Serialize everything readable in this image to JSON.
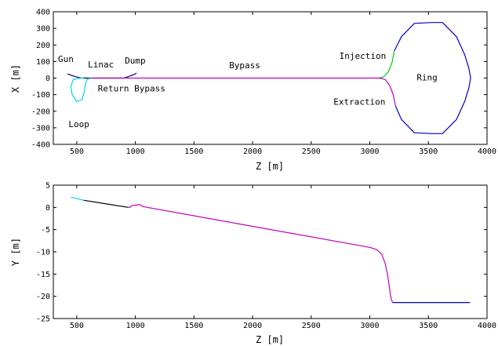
{
  "chart_data": [
    {
      "type": "line",
      "xlabel": "Z  [m]",
      "ylabel": "X  [m]",
      "xlim": [
        300,
        4000
      ],
      "ylim": [
        -400,
        400
      ],
      "xticks": [
        500,
        1000,
        1500,
        2000,
        2500,
        3000,
        3500,
        4000
      ],
      "yticks": [
        400,
        300,
        200,
        100,
        0,
        -100,
        -200,
        -300,
        -400
      ],
      "grid": false,
      "annotations": [
        {
          "text": "Gun",
          "x": 340,
          "y": 98
        },
        {
          "text": "Linac",
          "x": 595,
          "y": 65
        },
        {
          "text": "Dump",
          "x": 910,
          "y": 88
        },
        {
          "text": "Return Bypass",
          "x": 680,
          "y": -80
        },
        {
          "text": "Bypass",
          "x": 1800,
          "y": 60
        },
        {
          "text": "Injection",
          "x": 2740,
          "y": 117
        },
        {
          "text": "Ring",
          "x": 3400,
          "y": -15
        },
        {
          "text": "Extraction",
          "x": 2690,
          "y": -160
        },
        {
          "text": "Loop",
          "x": 430,
          "y": -295
        }
      ],
      "series": [
        {
          "color": "#000080",
          "x": [
            420,
            460,
            500,
            540
          ],
          "y": [
            25,
            15,
            6,
            0
          ]
        },
        {
          "color": "#000000",
          "x": [
            540,
            900
          ],
          "y": [
            0,
            0
          ]
        },
        {
          "color": "#000080",
          "x": [
            900,
            930,
            960,
            990,
            1010
          ],
          "y": [
            0,
            6,
            14,
            22,
            30
          ]
        },
        {
          "color": "#00d0e8",
          "x": [
            560,
            530,
            470,
            450,
            460,
            500,
            545,
            565,
            575,
            590,
            620
          ],
          "y": [
            0,
            0,
            -8,
            -50,
            -100,
            -142,
            -130,
            -80,
            -30,
            -7,
            0
          ]
        },
        {
          "color": "#c000c0",
          "x": [
            620,
            3080
          ],
          "y": [
            0,
            0
          ]
        },
        {
          "color": "#00cc00",
          "x": [
            3080,
            3120,
            3160,
            3190,
            3210
          ],
          "y": [
            0,
            8,
            40,
            95,
            165
          ]
        },
        {
          "color": "#c000c0",
          "x": [
            3080,
            3130,
            3170,
            3200,
            3220
          ],
          "y": [
            0,
            -8,
            -45,
            -100,
            -170
          ]
        },
        {
          "color": "#0000cc",
          "x": [
            3210,
            3270,
            3380,
            3530,
            3620,
            3740,
            3810,
            3845,
            3860,
            3845,
            3810,
            3740,
            3620,
            3530,
            3380,
            3270,
            3220
          ],
          "y": [
            165,
            250,
            330,
            335,
            335,
            250,
            140,
            60,
            0,
            -60,
            -140,
            -250,
            -335,
            -335,
            -330,
            -250,
            -170
          ]
        }
      ]
    },
    {
      "type": "line",
      "xlabel": "Z  [m]",
      "ylabel": "Y  [m]",
      "xlim": [
        300,
        4000
      ],
      "ylim": [
        -25,
        5
      ],
      "xticks": [
        500,
        1000,
        1500,
        2000,
        2500,
        3000,
        3500,
        4000
      ],
      "yticks": [
        5,
        0,
        -5,
        -10,
        -15,
        -20,
        -25
      ],
      "grid": false,
      "series": [
        {
          "color": "#00d0e8",
          "x": [
            450,
            560
          ],
          "y": [
            2.3,
            1.6
          ]
        },
        {
          "color": "#000000",
          "x": [
            560,
            940
          ],
          "y": [
            1.6,
            0.0
          ]
        },
        {
          "color": "#c000c0",
          "x": [
            940,
            960,
            965,
            975,
            1040,
            1050,
            1060,
            3000,
            3060,
            3100,
            3130,
            3150,
            3165,
            3175,
            3185,
            3195
          ],
          "y": [
            0.0,
            0.05,
            0.4,
            0.45,
            0.6,
            0.5,
            0.2,
            -9.0,
            -9.5,
            -10.5,
            -12.5,
            -15.0,
            -17.5,
            -19.5,
            -20.8,
            -21.4
          ]
        },
        {
          "color": "#0000cc",
          "x": [
            3195,
            3855
          ],
          "y": [
            -21.4,
            -21.4
          ]
        }
      ]
    }
  ]
}
